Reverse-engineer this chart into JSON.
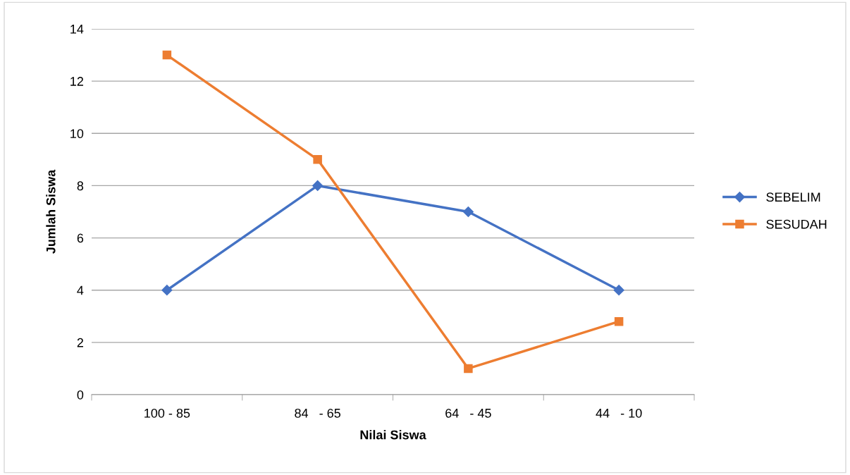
{
  "chart_data": {
    "type": "line",
    "xlabel": "Nilai Siswa",
    "ylabel": "Jumlah Siswa",
    "categories": [
      "100 - 85",
      "84   - 65",
      "64   - 45",
      "44   - 10"
    ],
    "series": [
      {
        "name": "SEBELIM",
        "color": "#4472c4",
        "marker": "diamond",
        "values": [
          4,
          8,
          7,
          4
        ]
      },
      {
        "name": "SESUDAH",
        "color": "#ed7d31",
        "marker": "square",
        "values": [
          13,
          9,
          1,
          2.8
        ]
      }
    ],
    "ylim": [
      0,
      14
    ],
    "yticks": [
      0,
      2,
      4,
      6,
      8,
      10,
      12,
      14
    ],
    "grid": "y",
    "legend": "right",
    "line_style": "solid"
  }
}
